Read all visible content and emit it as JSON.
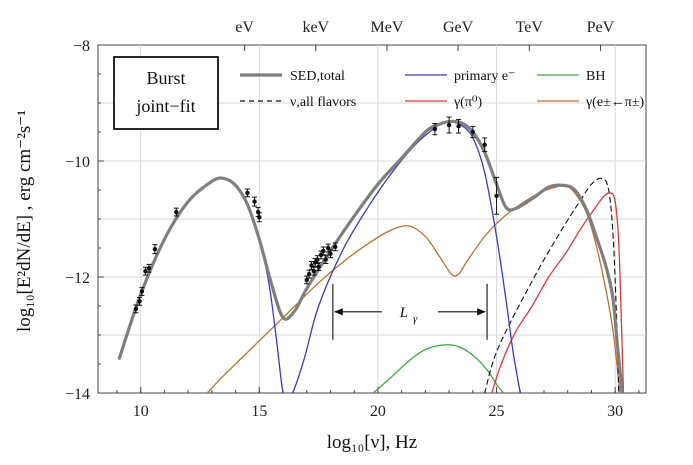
{
  "chart_data": {
    "type": "line",
    "xlabel": "log₁₀[ν], Hz",
    "ylabel": "log₁₀[E²dN/dE] , erg cm⁻²s⁻¹",
    "xlim": [
      8.2,
      31.3
    ],
    "ylim": [
      -14,
      -8
    ],
    "x_ticks": [
      10,
      15,
      20,
      25,
      30
    ],
    "x_tick_labels": [
      "10",
      "15",
      "20",
      "25",
      "30"
    ],
    "y_ticks": [
      -14,
      -12,
      -10,
      -8
    ],
    "y_tick_labels": [
      "−14",
      "−12",
      "−10",
      "−8"
    ],
    "top_axis": {
      "ticks": [
        14.38,
        17.38,
        20.38,
        23.38,
        26.38,
        29.38
      ],
      "labels": [
        "eV",
        "keV",
        "MeV",
        "GeV",
        "TeV",
        "PeV"
      ]
    },
    "textbox": [
      "Burst",
      "joint−fit"
    ],
    "annotation": {
      "label": "L",
      "subscript": "γ",
      "x_range": [
        18.1,
        24.6
      ],
      "y": -12.6
    },
    "legend": [
      {
        "label": "SED,total",
        "color": "#7f7f7f",
        "style": "solid-thick"
      },
      {
        "label": "ν,all flavors",
        "color": "#000000",
        "style": "dashed"
      },
      {
        "label": "primary e⁻",
        "color": "#3b3bc4",
        "style": "solid"
      },
      {
        "label": "γ(π⁰)",
        "color": "#d63a3a",
        "style": "solid"
      },
      {
        "label": "BH",
        "color": "#3aaa3a",
        "style": "solid"
      },
      {
        "label": "γ(e±←π±)",
        "color": "#b8742e",
        "style": "solid"
      }
    ],
    "series": [
      {
        "name": "SED,total",
        "color": "#7f7f7f",
        "x": [
          9.1,
          10,
          11,
          12,
          13,
          13.5,
          14,
          14.5,
          15,
          15.5,
          16.0,
          16.5,
          17,
          18,
          19,
          20,
          21,
          22,
          22.5,
          23,
          23.5,
          24,
          24.5,
          25.0,
          25.4,
          25.8,
          26.5,
          27.2,
          27.8,
          28.3,
          28.8,
          29.2,
          29.6,
          29.9,
          30.1,
          30.3
        ],
        "y": [
          -13.4,
          -12.3,
          -11.35,
          -10.7,
          -10.35,
          -10.3,
          -10.42,
          -10.75,
          -11.35,
          -12.1,
          -12.7,
          -12.58,
          -12.2,
          -11.55,
          -10.95,
          -10.4,
          -9.95,
          -9.5,
          -9.38,
          -9.32,
          -9.34,
          -9.5,
          -9.85,
          -10.4,
          -10.8,
          -10.82,
          -10.65,
          -10.45,
          -10.42,
          -10.5,
          -10.85,
          -11.3,
          -11.8,
          -12.35,
          -13.2,
          -14.0
        ]
      },
      {
        "name": "primary e⁻",
        "color": "#3b3bc4",
        "x": [
          9.1,
          10,
          11,
          12,
          13,
          13.5,
          14,
          14.5,
          15,
          15.4,
          15.7,
          16.0,
          16.2,
          16.4,
          16.9,
          17.5,
          18.5,
          19.5,
          20.5,
          21.5,
          22.5,
          23.0,
          23.5,
          24.0,
          24.5,
          25.0,
          25.4,
          25.7,
          26.0
        ],
        "y": [
          -13.4,
          -12.3,
          -11.35,
          -10.7,
          -10.35,
          -10.3,
          -10.42,
          -10.75,
          -11.35,
          -12.1,
          -13.0,
          -14.0,
          -14.0,
          -14.0,
          -13.4,
          -12.5,
          -11.55,
          -10.85,
          -10.25,
          -9.75,
          -9.4,
          -9.33,
          -9.38,
          -9.6,
          -10.2,
          -11.3,
          -12.4,
          -13.3,
          -14.0
        ]
      },
      {
        "name": "γ(e±←π±)",
        "color": "#b8742e",
        "x": [
          12.8,
          13.5,
          14.5,
          15.5,
          16.5,
          17.5,
          18.5,
          19.5,
          20.5,
          21.3,
          22.0,
          22.6,
          23.1,
          23.4,
          23.8,
          24.5,
          25.2,
          26.0,
          26.8,
          27.5,
          27.9,
          28.3,
          28.8,
          29.2,
          29.6,
          29.9,
          30.1,
          30.2
        ],
        "y": [
          -14.0,
          -13.7,
          -13.3,
          -12.9,
          -12.5,
          -12.1,
          -11.75,
          -11.45,
          -11.2,
          -11.12,
          -11.3,
          -11.65,
          -11.95,
          -11.95,
          -11.7,
          -11.3,
          -11.0,
          -10.75,
          -10.55,
          -10.45,
          -10.42,
          -10.55,
          -10.9,
          -11.45,
          -12.2,
          -12.9,
          -13.6,
          -14.0
        ]
      },
      {
        "name": "γ(π⁰)",
        "color": "#d63a3a",
        "x": [
          24.8,
          25.2,
          25.8,
          26.5,
          27.2,
          27.9,
          28.5,
          29.0,
          29.5,
          29.8,
          30.0,
          30.15,
          30.25,
          30.35
        ],
        "y": [
          -14.0,
          -13.5,
          -12.95,
          -12.5,
          -12.0,
          -11.6,
          -11.2,
          -10.9,
          -10.62,
          -10.55,
          -10.7,
          -11.4,
          -12.6,
          -14.0
        ]
      },
      {
        "name": "ν,all flavors",
        "color": "#111111",
        "x": [
          24.5,
          24.9,
          25.5,
          26.2,
          27.0,
          27.8,
          28.5,
          29.0,
          29.4,
          29.7,
          29.9,
          30.05,
          30.15
        ],
        "y": [
          -14.0,
          -13.4,
          -12.85,
          -12.3,
          -11.7,
          -11.15,
          -10.7,
          -10.4,
          -10.3,
          -10.45,
          -11.2,
          -12.6,
          -14.0
        ]
      },
      {
        "name": "BH",
        "color": "#3aaa3a",
        "x": [
          19.8,
          20.5,
          21.3,
          22.0,
          22.8,
          23.4,
          24.0,
          24.6,
          25.0,
          25.3
        ],
        "y": [
          -14.0,
          -13.75,
          -13.45,
          -13.25,
          -13.17,
          -13.2,
          -13.35,
          -13.6,
          -13.85,
          -14.0
        ]
      }
    ],
    "data_points": [
      {
        "x": 9.8,
        "y": -12.55,
        "err": 0.05
      },
      {
        "x": 9.95,
        "y": -12.42,
        "err": 0.05
      },
      {
        "x": 10.05,
        "y": -12.25,
        "err": 0.05
      },
      {
        "x": 10.2,
        "y": -11.9,
        "err": 0.05
      },
      {
        "x": 10.35,
        "y": -11.85,
        "err": 0.05
      },
      {
        "x": 10.6,
        "y": -11.52,
        "err": 0.06
      },
      {
        "x": 11.5,
        "y": -10.88,
        "err": 0.05
      },
      {
        "x": 14.5,
        "y": -10.55,
        "err": 0.05
      },
      {
        "x": 14.8,
        "y": -10.7,
        "err": 0.06
      },
      {
        "x": 14.95,
        "y": -10.88,
        "err": 0.06
      },
      {
        "x": 15.0,
        "y": -10.97,
        "err": 0.06
      },
      {
        "x": 17.0,
        "y": -12.05,
        "err": 0.05
      },
      {
        "x": 17.1,
        "y": -11.95,
        "err": 0.05
      },
      {
        "x": 17.2,
        "y": -11.8,
        "err": 0.05
      },
      {
        "x": 17.3,
        "y": -11.9,
        "err": 0.05
      },
      {
        "x": 17.35,
        "y": -11.75,
        "err": 0.05
      },
      {
        "x": 17.45,
        "y": -11.7,
        "err": 0.05
      },
      {
        "x": 17.5,
        "y": -11.82,
        "err": 0.05
      },
      {
        "x": 17.6,
        "y": -11.62,
        "err": 0.05
      },
      {
        "x": 17.7,
        "y": -11.55,
        "err": 0.05
      },
      {
        "x": 17.8,
        "y": -11.7,
        "err": 0.05
      },
      {
        "x": 17.9,
        "y": -11.5,
        "err": 0.05
      },
      {
        "x": 18.0,
        "y": -11.6,
        "err": 0.05
      },
      {
        "x": 18.2,
        "y": -11.48,
        "err": 0.05
      },
      {
        "x": 22.4,
        "y": -9.45,
        "err": 0.08
      },
      {
        "x": 23.0,
        "y": -9.38,
        "err": 0.12
      },
      {
        "x": 23.4,
        "y": -9.4,
        "err": 0.1
      },
      {
        "x": 24.0,
        "y": -9.5,
        "err": 0.08
      },
      {
        "x": 24.5,
        "y": -9.72,
        "err": 0.1
      },
      {
        "x": 25.0,
        "y": -10.6,
        "err": 0.3
      }
    ]
  }
}
